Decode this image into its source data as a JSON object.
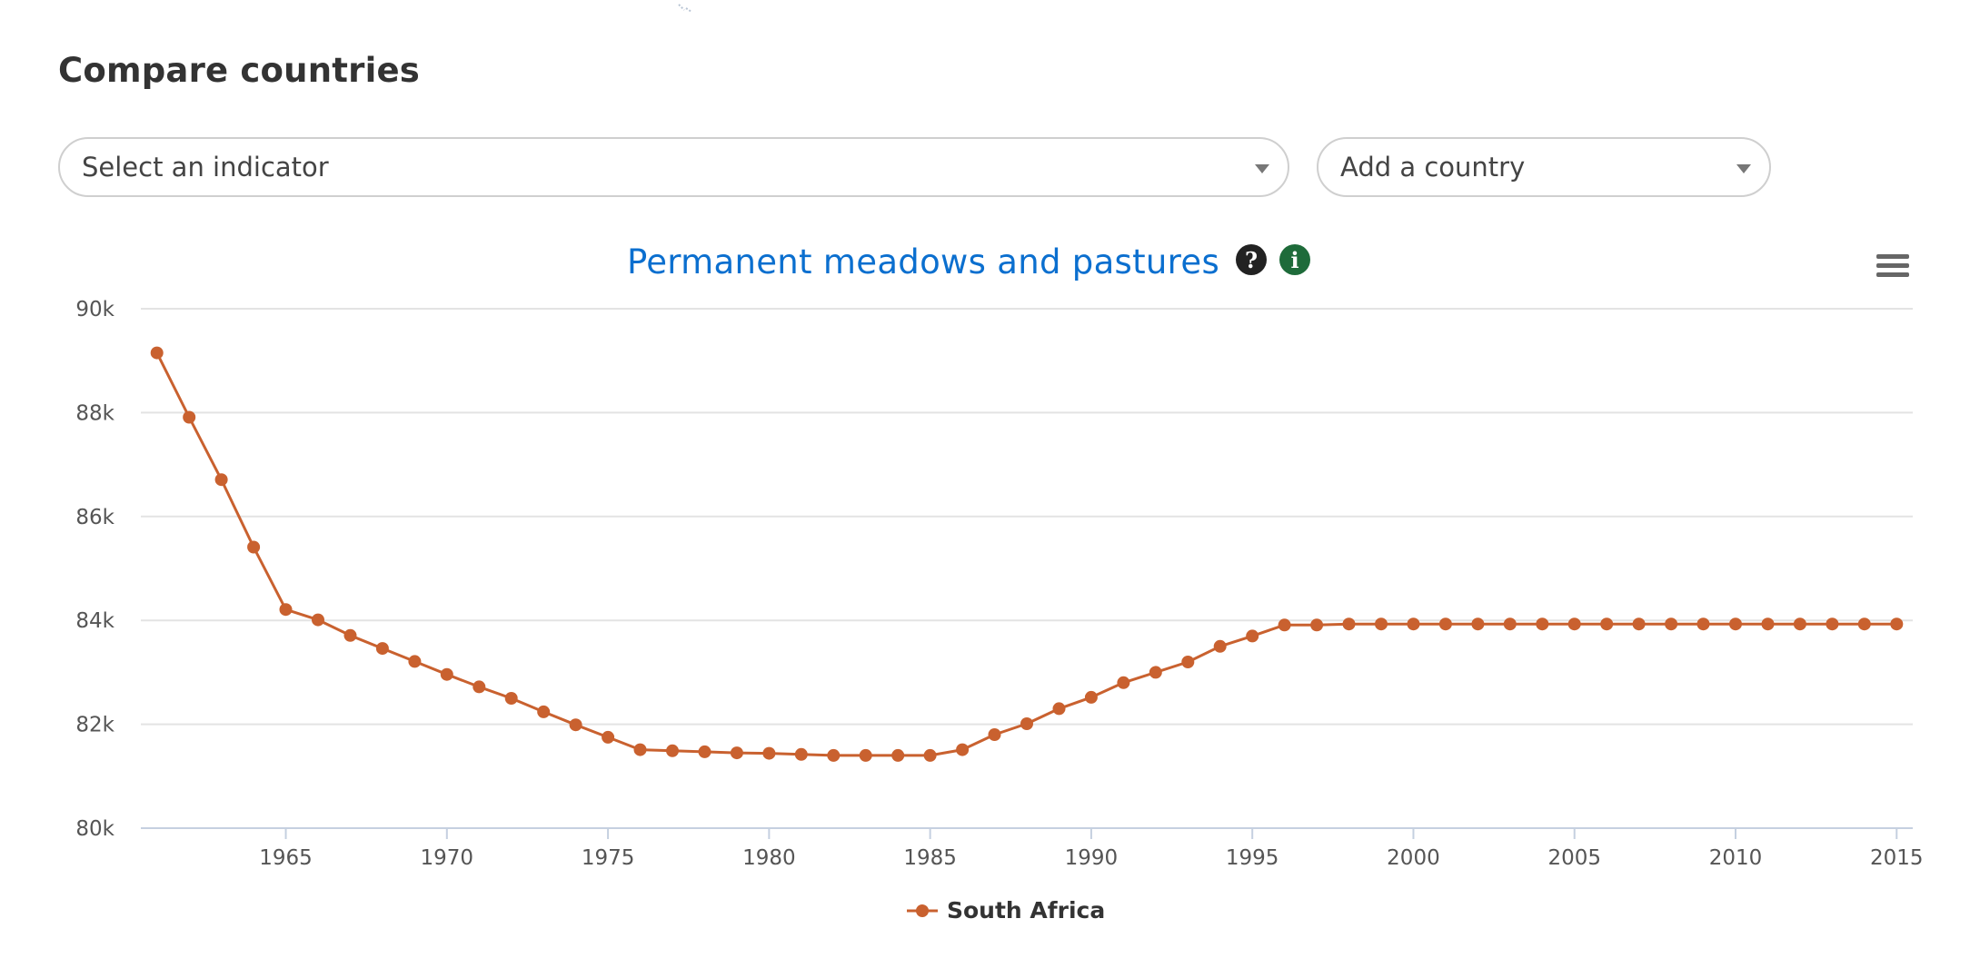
{
  "page": {
    "title": "Compare countries"
  },
  "controls": {
    "indicator_placeholder": "Select an indicator",
    "country_placeholder": "Add a country"
  },
  "icons": {
    "help": "question-mark-icon",
    "info": "info-icon",
    "menu": "hamburger-menu-icon",
    "help_glyph": "?",
    "info_glyph": "i"
  },
  "colors": {
    "series": "#c9612f",
    "title": "#0b6fcf",
    "info_icon": "#1e6b3a",
    "help_icon": "#222222"
  },
  "chart_data": {
    "type": "line",
    "title": "Permanent meadows and pastures",
    "xlabel": "",
    "ylabel": "",
    "ylim": [
      80000,
      90000
    ],
    "xlim": [
      1960.5,
      2015.5
    ],
    "y_ticks": [
      80000,
      82000,
      84000,
      86000,
      88000,
      90000
    ],
    "y_tick_labels": [
      "80k",
      "82k",
      "84k",
      "86k",
      "88k",
      "90k"
    ],
    "x_ticks": [
      1965,
      1970,
      1975,
      1980,
      1985,
      1990,
      1995,
      2000,
      2005,
      2010,
      2015
    ],
    "x_tick_labels": [
      "1965",
      "1970",
      "1975",
      "1980",
      "1985",
      "1990",
      "1995",
      "2000",
      "2005",
      "2010",
      "2015"
    ],
    "grid": true,
    "legend": "bottom-center",
    "series": [
      {
        "name": "South Africa",
        "color": "#c9612f",
        "x": [
          1961,
          1962,
          1963,
          1964,
          1965,
          1966,
          1967,
          1968,
          1969,
          1970,
          1971,
          1972,
          1973,
          1974,
          1975,
          1976,
          1977,
          1978,
          1979,
          1980,
          1981,
          1982,
          1983,
          1984,
          1985,
          1986,
          1987,
          1988,
          1989,
          1990,
          1991,
          1992,
          1993,
          1994,
          1995,
          1996,
          1997,
          1998,
          1999,
          2000,
          2001,
          2002,
          2003,
          2004,
          2005,
          2006,
          2007,
          2008,
          2009,
          2010,
          2011,
          2012,
          2013,
          2014,
          2015
        ],
        "values": [
          89150,
          87910,
          86710,
          85410,
          84210,
          84010,
          83710,
          83460,
          83210,
          82960,
          82720,
          82500,
          82240,
          81990,
          81750,
          81510,
          81490,
          81470,
          81450,
          81440,
          81420,
          81400,
          81400,
          81400,
          81400,
          81510,
          81800,
          82010,
          82300,
          82520,
          82800,
          83000,
          83200,
          83500,
          83700,
          83910,
          83910,
          83930,
          83930,
          83930,
          83930,
          83930,
          83930,
          83930,
          83930,
          83930,
          83930,
          83930,
          83930,
          83930,
          83930,
          83930,
          83930,
          83930,
          83930
        ]
      }
    ]
  }
}
